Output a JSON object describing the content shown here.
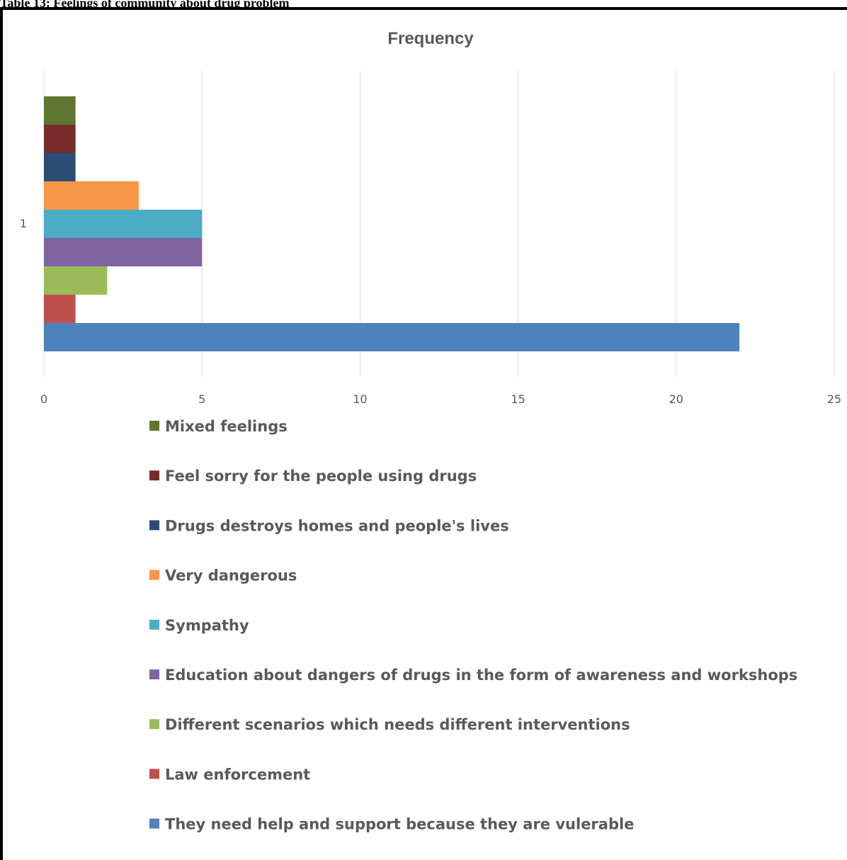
{
  "caption": "Table 13: Feelings of community about drug problem",
  "chart_data": {
    "type": "bar",
    "orientation": "horizontal",
    "title": "Frequency",
    "categories": [
      "1"
    ],
    "xlim": [
      0,
      25
    ],
    "x_ticks": [
      "0",
      "5",
      "10",
      "15",
      "20",
      "25"
    ],
    "grid": true,
    "legend_position": "bottom",
    "series": [
      {
        "name": "Mixed feelings",
        "values": [
          1
        ],
        "color": "#5f7530"
      },
      {
        "name": "Feel sorry for the people using drugs",
        "values": [
          1
        ],
        "color": "#772c2a"
      },
      {
        "name": "Drugs destroys homes and people's lives",
        "values": [
          1
        ],
        "color": "#2c4d75"
      },
      {
        "name": "Very dangerous",
        "values": [
          3
        ],
        "color": "#f79646"
      },
      {
        "name": "Sympathy",
        "values": [
          5
        ],
        "color": "#4bacc6"
      },
      {
        "name": "Education about dangers of drugs in the form of awareness and workshops",
        "values": [
          5
        ],
        "color": "#8064a2"
      },
      {
        "name": "Different scenarios which needs different interventions",
        "values": [
          2
        ],
        "color": "#9bbb59"
      },
      {
        "name": "Law enforcement",
        "values": [
          1
        ],
        "color": "#c0504d"
      },
      {
        "name": "They need help and support because they are vulerable",
        "values": [
          22
        ],
        "color": "#4f81bd"
      }
    ]
  }
}
